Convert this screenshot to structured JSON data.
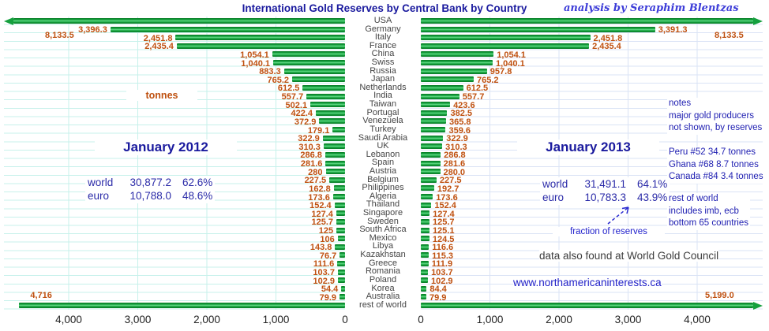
{
  "title": "International Gold Reserves by Central Bank by Country",
  "subtitle": "analysis by Seraphim Blentzas",
  "panels": {
    "left": {
      "unit": "tonnes",
      "period": "January 2012",
      "world_label": "world",
      "world_value": "30,877.2",
      "world_pct": "62.6%",
      "euro_label": "euro",
      "euro_value": "10,788.0",
      "euro_pct": "48.6%"
    },
    "right": {
      "period": "January 2013",
      "world_label": "world",
      "world_value": "31,491.1",
      "world_pct": "64.1%",
      "euro_label": "euro",
      "euro_value": "10,783.3",
      "euro_pct": "43.9%",
      "fraction_note": "fraction of reserves"
    }
  },
  "notes": {
    "block1": [
      "notes",
      "major gold producers",
      "not shown, by reserves"
    ],
    "block2": [
      "Peru #52 34.7 tonnes",
      "Ghana #68 8.7 tonnes",
      "Canada #84 3.4 tonnes"
    ],
    "block3": [
      "rest of world",
      "includes imb, ecb",
      "bottom 65 countries"
    ]
  },
  "footer": {
    "source_note": "data also found at World Gold Council",
    "website": "www.northamericaninterests.ca"
  },
  "chart_data": {
    "type": "bar",
    "layout": "tornado",
    "title": "International Gold Reserves by Central Bank by Country",
    "unit": "tonnes",
    "categories": [
      "USA",
      "Germany",
      "Italy",
      "France",
      "China",
      "Swiss",
      "Russia",
      "Japan",
      "Netherlands",
      "India",
      "Taiwan",
      "Portugal",
      "Venezuela",
      "Turkey",
      "Saudi Arabia",
      "UK",
      "Lebanon",
      "Spain",
      "Austria",
      "Belgium",
      "Philippines",
      "Algeria",
      "Thailand",
      "Singapore",
      "Sweden",
      "South Africa",
      "Mexico",
      "Libya",
      "Kazakhstan",
      "Greece",
      "Romania",
      "Poland",
      "Korea",
      "Australia",
      "rest of world"
    ],
    "series": [
      {
        "name": "January 2012",
        "side": "left",
        "values": [
          8133.5,
          3396.3,
          2451.8,
          2435.4,
          1054.1,
          1040.1,
          883.3,
          765.2,
          612.5,
          557.7,
          502.1,
          422.4,
          372.9,
          179.1,
          322.9,
          310.3,
          286.8,
          281.6,
          280,
          227.5,
          162.8,
          173.6,
          152.4,
          127.4,
          125.7,
          125,
          106,
          143.8,
          76.7,
          111.6,
          103.7,
          102.9,
          54.4,
          79.9,
          4716
        ],
        "labels": [
          "8,133.5",
          "3,396.3",
          "2,451.8",
          "2,435.4",
          "1,054.1",
          "1,040.1",
          "883.3",
          "765.2",
          "612.5",
          "557.7",
          "502.1",
          "422.4",
          "372.9",
          "179.1",
          "322.9",
          "310.3",
          "286.8",
          "281.6",
          "280",
          "227.5",
          "162.8",
          "173.6",
          "152.4",
          "127.4",
          "125.7",
          "125",
          "106",
          "143.8",
          "76.7",
          "111.6",
          "103.7",
          "102.9",
          "54.4",
          "79.9",
          "4,716"
        ]
      },
      {
        "name": "January 2013",
        "side": "right",
        "values": [
          8133.5,
          3391.3,
          2451.8,
          2435.4,
          1054.1,
          1040.1,
          957.8,
          765.2,
          612.5,
          557.7,
          423.6,
          382.5,
          365.8,
          359.6,
          322.9,
          310.3,
          286.8,
          281.6,
          280.0,
          227.5,
          192.7,
          173.6,
          152.4,
          127.4,
          125.7,
          125.1,
          124.5,
          116.6,
          115.3,
          111.9,
          103.7,
          102.9,
          84.4,
          79.9,
          5199.0
        ],
        "labels": [
          "8,133.5",
          "3,391.3",
          "2,451.8",
          "2,435.4",
          "1,054.1",
          "1,040.1",
          "957.8",
          "765.2",
          "612.5",
          "557.7",
          "423.6",
          "382.5",
          "365.8",
          "359.6",
          "322.9",
          "310.3",
          "286.8",
          "281.6",
          "280.0",
          "227.5",
          "192.7",
          "173.6",
          "152.4",
          "127.4",
          "125.7",
          "125.1",
          "124.5",
          "116.6",
          "115.3",
          "111.9",
          "103.7",
          "102.9",
          "84.4",
          "79.9",
          "5,199.0"
        ]
      }
    ],
    "x_axis": {
      "tick_labels": [
        "0",
        "1,000",
        "2,000",
        "3,000",
        "4,000"
      ],
      "range": [
        0,
        4900
      ],
      "left_axis_direction": "reversed",
      "grid": true
    }
  },
  "colors": {
    "bar": "#15a03e",
    "value_text": "#bf500f",
    "heading": "#1a1a9e",
    "subtitle": "#3d3dd8",
    "link": "#2121c8",
    "grid_left": "#c7f1eb",
    "grid_right": "#dae3f5"
  }
}
